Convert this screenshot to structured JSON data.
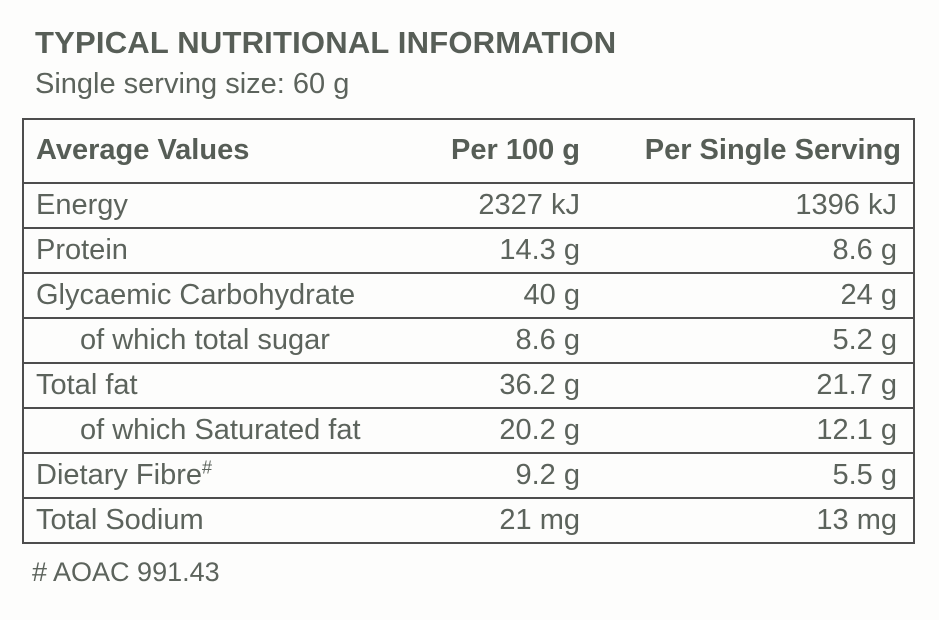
{
  "page": {
    "title": "TYPICAL NUTRITIONAL INFORMATION",
    "subtitle": "Single serving size: 60 g",
    "footnote": "# AOAC 991.43"
  },
  "colors": {
    "text": "#5c635c",
    "title_text": "#575e57",
    "border": "#4d4d4d",
    "background": "#fdfdfc"
  },
  "table": {
    "headers": {
      "label": "Average Values",
      "per_100g": "Per 100 g",
      "per_serving": "Per Single Serving"
    },
    "rows": [
      {
        "label": "Energy",
        "superscript": "",
        "per_100g": "2327 kJ",
        "per_serving": "1396 kJ"
      },
      {
        "label": "Protein",
        "superscript": "",
        "per_100g": "14.3 g",
        "per_serving": "8.6 g"
      },
      {
        "label": "Glycaemic Carbohydrate",
        "superscript": "",
        "per_100g": "40 g",
        "per_serving": "24 g"
      },
      {
        "label": "of which total sugar",
        "superscript": "",
        "per_100g": "8.6 g",
        "per_serving": "5.2 g"
      },
      {
        "label": "Total fat",
        "superscript": "",
        "per_100g": "36.2 g",
        "per_serving": "21.7 g"
      },
      {
        "label": "of which Saturated fat",
        "superscript": "",
        "per_100g": "20.2 g",
        "per_serving": "12.1 g"
      },
      {
        "label": "Dietary Fibre",
        "superscript": "#",
        "per_100g": "9.2 g",
        "per_serving": "5.5 g"
      },
      {
        "label": "Total Sodium",
        "superscript": "",
        "per_100g": "21 mg",
        "per_serving": "13 mg"
      }
    ]
  }
}
